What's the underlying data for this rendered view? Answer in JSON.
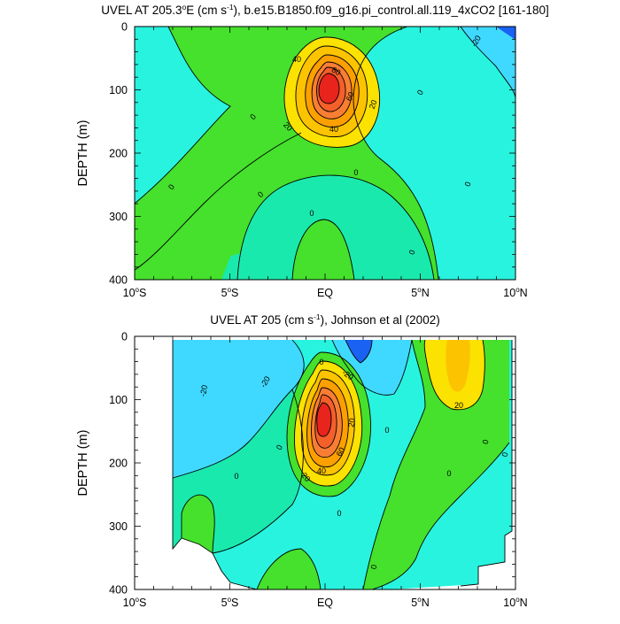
{
  "colors": {
    "red": "#e8241d",
    "orange": "#f97e33",
    "yellow": "#fbe200",
    "green": "#45e12c",
    "teal": "#1ae9ae",
    "aqua": "#28f3df",
    "sky": "#3fd9ff",
    "blue": "#1a62f2",
    "frame": "#000000",
    "background": "#ffffff"
  },
  "chart_data": [
    {
      "type": "heatmap",
      "variant": "filled-contour",
      "title": "UVEL AT 205.3°E (cm s-1), b.e15.B1850.f09_g16.pi_control.all.119_4xCO2 [161-180]",
      "title_parts": {
        "main": "UVEL AT 205.3",
        "deg": "o",
        "east": "E (cm s",
        "exp": "-1",
        "rest": "), b.e15.B1850.f09_g16.pi_control.all.119_4xCO2 [161-180]"
      },
      "ylabel": "DEPTH (m)",
      "xlim": [
        -10,
        10
      ],
      "ylim": [
        400,
        0
      ],
      "y_ticks": [
        "0",
        "100",
        "200",
        "300",
        "400"
      ],
      "x_ticks": [
        "10°S",
        "5°S",
        "EQ",
        "5°N",
        "10°N"
      ],
      "core": {
        "lat": 0.0,
        "depth": 90,
        "max_speed": 90
      },
      "contour_labels": [
        "-20",
        "0",
        "0",
        "0",
        "0",
        "0",
        "0",
        "0",
        "0",
        "20",
        "20",
        "40",
        "40",
        "60",
        "80"
      ]
    },
    {
      "type": "heatmap",
      "variant": "filled-contour",
      "title": "UVEL AT 205 (cm s-1), Johnson et al (2002)",
      "title_parts": {
        "main": "UVEL AT 205 (cm s",
        "exp": "-1",
        "rest": "), Johnson et al (2002)"
      },
      "ylabel": "DEPTH (m)",
      "xlim": [
        -10,
        10
      ],
      "ylim": [
        400,
        0
      ],
      "y_ticks": [
        "0",
        "100",
        "200",
        "300",
        "400"
      ],
      "x_ticks": [
        "10°S",
        "5°S",
        "EQ",
        "5°N",
        "10°N"
      ],
      "core": {
        "lat": 0.0,
        "depth": 130,
        "max_speed": 90
      },
      "contour_labels": [
        "-20",
        "-20",
        "-20",
        "0",
        "0",
        "0",
        "0",
        "0",
        "0",
        "0",
        "0",
        "0",
        "20",
        "20",
        "20",
        "40",
        "60"
      ]
    }
  ]
}
